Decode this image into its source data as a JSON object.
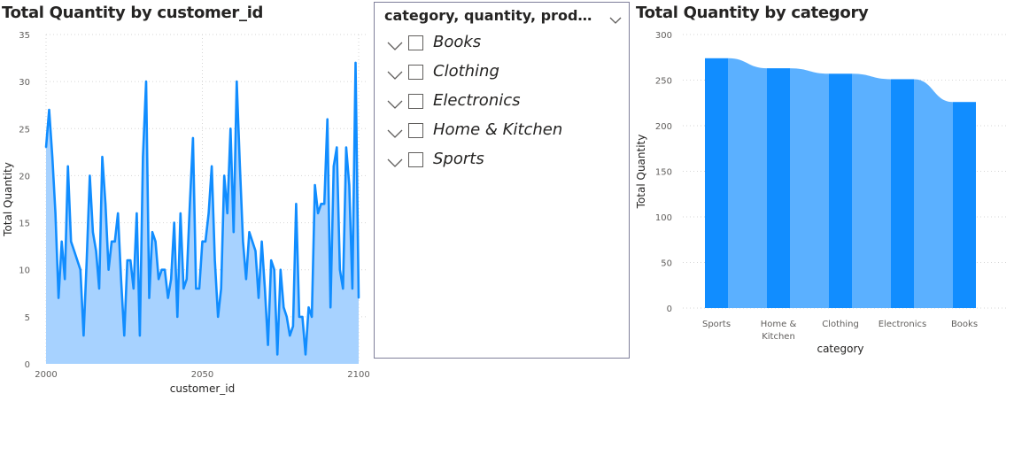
{
  "left_chart": {
    "title": "Total Quantity by customer_id",
    "chart_data": {
      "type": "area",
      "xlabel": "customer_id",
      "ylabel": "Total Quantity",
      "xlim": [
        2000,
        2100
      ],
      "ylim": [
        0,
        35
      ],
      "xticks": [
        "2000",
        "2050",
        "2100"
      ],
      "yticks": [
        "0",
        "5",
        "10",
        "15",
        "20",
        "25",
        "30",
        "35"
      ],
      "grid": true,
      "colors": {
        "line": "#118DFF",
        "fill": "#A7D2FF"
      },
      "x": [
        2000,
        2001,
        2002,
        2003,
        2004,
        2005,
        2006,
        2007,
        2008,
        2009,
        2010,
        2011,
        2012,
        2013,
        2014,
        2015,
        2016,
        2017,
        2018,
        2019,
        2020,
        2021,
        2022,
        2023,
        2024,
        2025,
        2026,
        2027,
        2028,
        2029,
        2030,
        2031,
        2032,
        2033,
        2034,
        2035,
        2036,
        2037,
        2038,
        2039,
        2040,
        2041,
        2042,
        2043,
        2044,
        2045,
        2046,
        2047,
        2048,
        2049,
        2050,
        2051,
        2052,
        2053,
        2054,
        2055,
        2056,
        2057,
        2058,
        2059,
        2060,
        2061,
        2062,
        2063,
        2064,
        2065,
        2066,
        2067,
        2068,
        2069,
        2070,
        2071,
        2072,
        2073,
        2074,
        2075,
        2076,
        2077,
        2078,
        2079,
        2080,
        2081,
        2082,
        2083,
        2084,
        2085,
        2086,
        2087,
        2088,
        2089,
        2090,
        2091,
        2092,
        2093,
        2094,
        2095,
        2096,
        2097,
        2098,
        2099,
        2100
      ],
      "values": [
        23,
        27,
        22,
        16,
        7,
        13,
        9,
        21,
        13,
        12,
        11,
        10,
        3,
        11,
        20,
        14,
        12,
        8,
        22,
        17,
        10,
        13,
        13,
        16,
        9,
        3,
        11,
        11,
        8,
        16,
        3,
        22,
        30,
        7,
        14,
        13,
        9,
        10,
        10,
        7,
        9,
        15,
        5,
        16,
        8,
        9,
        17,
        24,
        8,
        8,
        13,
        13,
        16,
        21,
        11,
        5,
        8,
        20,
        16,
        25,
        14,
        30,
        21,
        13,
        9,
        14,
        13,
        12,
        7,
        13,
        8,
        2,
        11,
        10,
        1,
        10,
        6,
        5,
        3,
        4,
        17,
        5,
        5,
        1,
        6,
        5,
        19,
        16,
        17,
        17,
        26,
        6,
        21,
        23,
        10,
        8,
        23,
        19,
        8,
        32,
        7
      ]
    }
  },
  "slicer": {
    "header": "category, quantity, product...",
    "items": [
      "Books",
      "Clothing",
      "Electronics",
      "Home & Kitchen",
      "Sports"
    ]
  },
  "right_chart": {
    "title": "Total Quantity by category",
    "chart_data": {
      "type": "bar",
      "xlabel": "category",
      "ylabel": "Total Quantity",
      "ylim": [
        0,
        300
      ],
      "yticks": [
        "0",
        "50",
        "100",
        "150",
        "200",
        "250",
        "300"
      ],
      "categories": [
        "Sports",
        "Home & Kitchen",
        "Clothing",
        "Electronics",
        "Books"
      ],
      "category_label_lines": [
        [
          "Sports"
        ],
        [
          "Home &",
          "Kitchen"
        ],
        [
          "Clothing"
        ],
        [
          "Electronics"
        ],
        [
          "Books"
        ]
      ],
      "values": [
        274,
        263,
        257,
        251,
        226
      ],
      "grid": true,
      "colors": {
        "bar": "#118DFF",
        "ribbon": "#5BB0FF"
      }
    }
  }
}
